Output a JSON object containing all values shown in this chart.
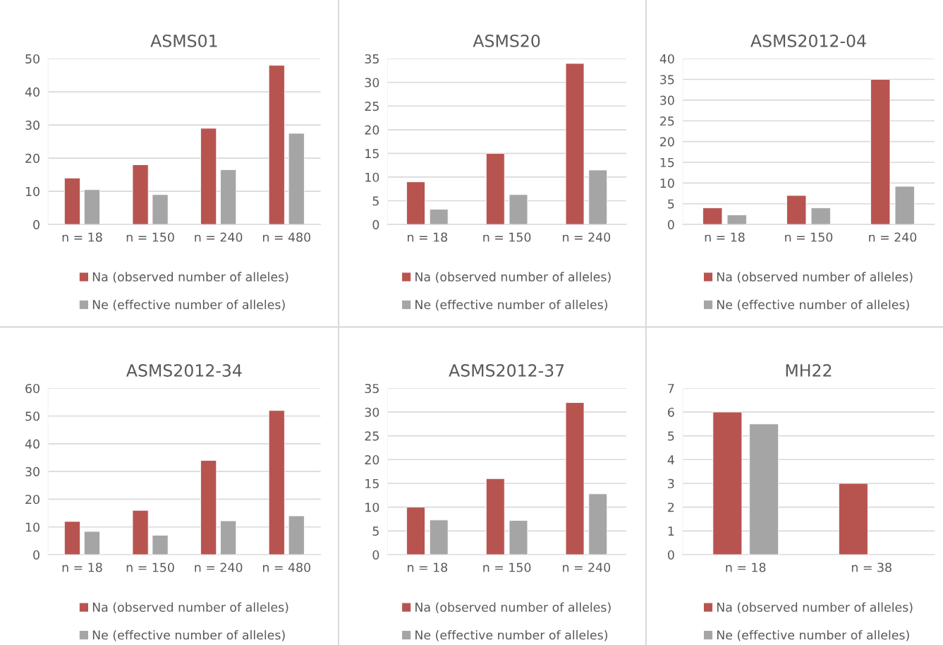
{
  "chart_data": [
    {
      "type": "bar",
      "title": "ASMS01",
      "categories": [
        "n = 18",
        "n = 150",
        "n = 240",
        "n = 480"
      ],
      "ylim": [
        0,
        50
      ],
      "yticks": [
        0,
        10,
        20,
        30,
        40,
        50
      ],
      "grid": "y",
      "legend": "bottom",
      "series": [
        {
          "name": "Na (observed number of alleles)",
          "color": "#b85450",
          "values": [
            14,
            18,
            29,
            48
          ]
        },
        {
          "name": "Ne (effective number of alleles)",
          "color": "#a5a5a5",
          "values": [
            10.5,
            9,
            16.5,
            27.5
          ]
        }
      ]
    },
    {
      "type": "bar",
      "title": "ASMS20",
      "categories": [
        "n = 18",
        "n = 150",
        "n = 240"
      ],
      "ylim": [
        0,
        35
      ],
      "yticks": [
        0,
        5,
        10,
        15,
        20,
        25,
        30,
        35
      ],
      "grid": "y",
      "legend": "bottom",
      "series": [
        {
          "name": "Na (observed number of alleles)",
          "color": "#b85450",
          "values": [
            9,
            15,
            34
          ]
        },
        {
          "name": "Ne (effective number of alleles)",
          "color": "#a5a5a5",
          "values": [
            3.2,
            6.3,
            11.5
          ]
        }
      ]
    },
    {
      "type": "bar",
      "title": "ASMS2012-04",
      "categories": [
        "n = 18",
        "n = 150",
        "n = 240"
      ],
      "ylim": [
        0,
        40
      ],
      "yticks": [
        0,
        5,
        10,
        15,
        20,
        25,
        30,
        35,
        40
      ],
      "grid": "y",
      "legend": "bottom",
      "series": [
        {
          "name": "Na (observed number of alleles)",
          "color": "#b85450",
          "values": [
            4,
            7,
            35
          ]
        },
        {
          "name": "Ne (effective number of alleles)",
          "color": "#a5a5a5",
          "values": [
            2.3,
            4,
            9.2
          ]
        }
      ]
    },
    {
      "type": "bar",
      "title": "ASMS2012-34",
      "categories": [
        "n = 18",
        "n = 150",
        "n = 240",
        "n = 480"
      ],
      "ylim": [
        0,
        60
      ],
      "yticks": [
        0,
        10,
        20,
        30,
        40,
        50,
        60
      ],
      "grid": "y",
      "legend": "bottom",
      "series": [
        {
          "name": "Na (observed number of alleles)",
          "color": "#b85450",
          "values": [
            12,
            16,
            34,
            52
          ]
        },
        {
          "name": "Ne (effective number of alleles)",
          "color": "#a5a5a5",
          "values": [
            8.4,
            7,
            12.2,
            14
          ]
        }
      ]
    },
    {
      "type": "bar",
      "title": "ASMS2012-37",
      "categories": [
        "n = 18",
        "n = 150",
        "n = 240"
      ],
      "ylim": [
        0,
        35
      ],
      "yticks": [
        0,
        5,
        10,
        15,
        20,
        25,
        30,
        35
      ],
      "grid": "y",
      "legend": "bottom",
      "series": [
        {
          "name": "Na (observed number of alleles)",
          "color": "#b85450",
          "values": [
            10,
            16,
            32
          ]
        },
        {
          "name": "Ne (effective number of alleles)",
          "color": "#a5a5a5",
          "values": [
            7.3,
            7.2,
            12.8
          ]
        }
      ]
    },
    {
      "type": "bar",
      "title": "MH22",
      "categories": [
        "n = 18",
        "n = 38"
      ],
      "ylim": [
        0,
        7
      ],
      "yticks": [
        0,
        1,
        2,
        3,
        4,
        5,
        6,
        7
      ],
      "grid": "y",
      "legend": "bottom",
      "series": [
        {
          "name": "Na (observed number of alleles)",
          "color": "#b85450",
          "values": [
            6,
            3
          ]
        },
        {
          "name": "Ne (effective number of alleles)",
          "color": "#a5a5a5",
          "values": [
            5.5,
            null
          ]
        }
      ]
    }
  ]
}
